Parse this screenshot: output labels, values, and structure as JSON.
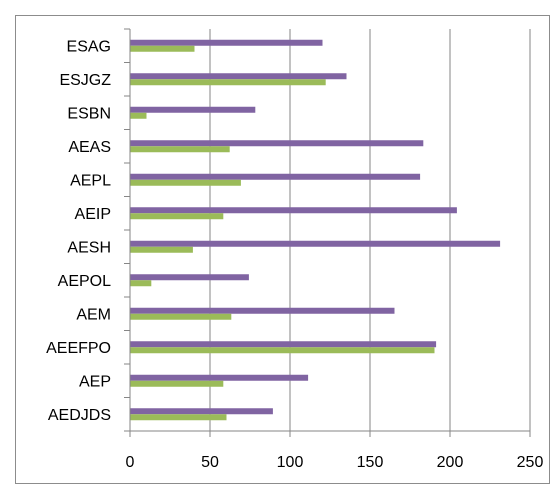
{
  "chart_data": {
    "type": "bar",
    "orientation": "horizontal",
    "title": "",
    "xlabel": "",
    "ylabel": "",
    "categories": [
      "ESAG",
      "ESJGZ",
      "ESBN",
      "AEAS",
      "AEPL",
      "AEIP",
      "AESH",
      "AEPOL",
      "AEM",
      "AEEFPO",
      "AEP",
      "AEDJDS"
    ],
    "series": [
      {
        "color": "#8064a2",
        "values": [
          120,
          135,
          78,
          183,
          181,
          204,
          231,
          74,
          165,
          191,
          111,
          89
        ]
      },
      {
        "color": "#9bbb59",
        "values": [
          40,
          122,
          10,
          62,
          69,
          58,
          39,
          13,
          63,
          190,
          58,
          60
        ]
      }
    ],
    "xlim": [
      0,
      250
    ],
    "xticks": [
      "0",
      "50",
      "100",
      "150",
      "200",
      "250"
    ],
    "grid": "vertical",
    "legend": "none"
  }
}
